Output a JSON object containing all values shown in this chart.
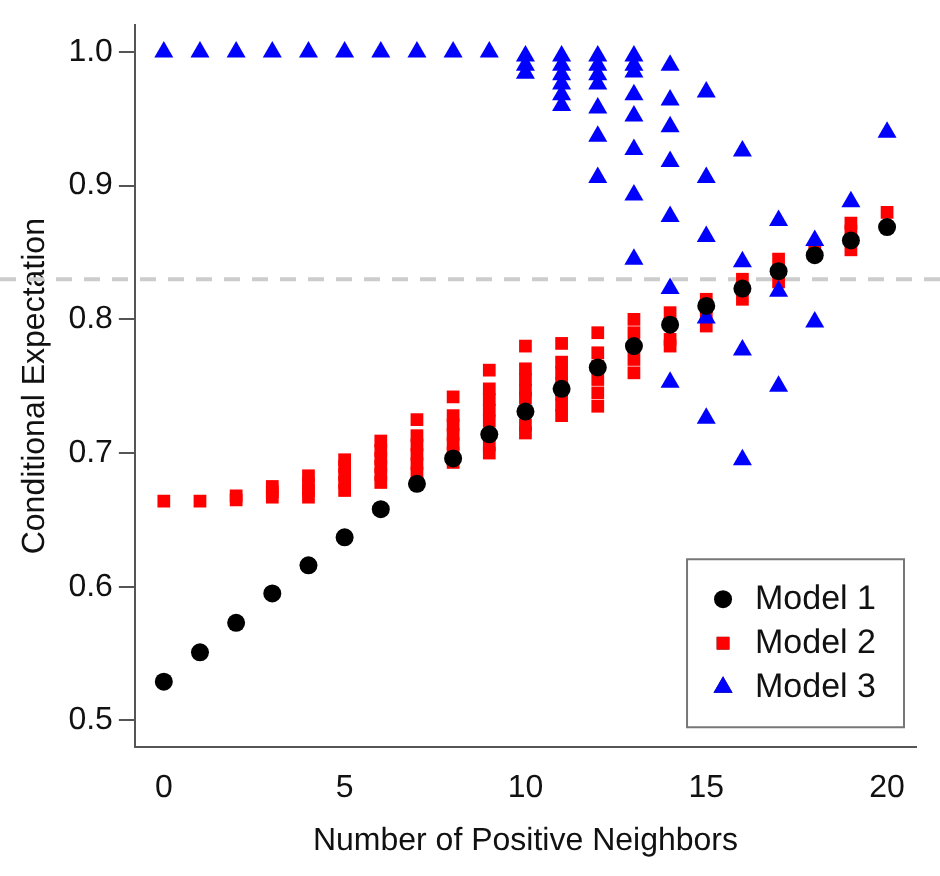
{
  "chart_data": {
    "type": "scatter",
    "xlabel": "Number of Positive Neighbors",
    "ylabel": "Conditional Expectation",
    "xlim": [
      -0.8,
      20.8
    ],
    "xticks": [
      0,
      5,
      10,
      15,
      20
    ],
    "ylim": [
      0.48,
      1.02
    ],
    "yticks": [
      0.5,
      0.6,
      0.7,
      0.8,
      0.9,
      {
        "value": 1,
        "label": "1.0"
      }
    ],
    "grid": false,
    "legend": "bottom right",
    "ref_lines": [
      {
        "axis": "y",
        "value": 0.83,
        "color": "#cccccc",
        "line_style": "dashed"
      }
    ],
    "series": [
      {
        "name": "Model 1",
        "color": "#000000",
        "marker": "circle",
        "x": [
          0,
          1,
          2,
          3,
          4,
          5,
          6,
          7,
          8,
          9,
          10,
          11,
          12,
          13,
          14,
          15,
          16,
          17,
          18,
          19,
          20
        ],
        "values": [
          0.529,
          0.551,
          0.573,
          0.595,
          0.616,
          0.637,
          0.658,
          0.677,
          0.696,
          0.714,
          0.731,
          0.748,
          0.764,
          0.78,
          0.796,
          0.81,
          0.823,
          0.836,
          0.848,
          0.859,
          0.869
        ]
      },
      {
        "name": "Model 2",
        "color": "#ff0000",
        "marker": "square",
        "x": [
          0,
          1,
          2,
          2,
          3,
          3,
          3,
          4,
          4,
          4,
          4,
          5,
          5,
          5,
          5,
          5,
          6,
          6,
          6,
          6,
          6,
          6,
          7,
          7,
          7,
          7,
          7,
          7,
          8,
          8,
          8,
          8,
          8,
          8,
          8,
          9,
          9,
          9,
          9,
          9,
          9,
          9,
          10,
          10,
          10,
          10,
          10,
          10,
          10,
          11,
          11,
          11,
          11,
          11,
          11,
          11,
          12,
          12,
          12,
          12,
          12,
          12,
          13,
          13,
          13,
          13,
          14,
          14,
          14,
          15,
          15,
          15,
          16,
          16,
          17,
          17,
          18,
          19,
          19,
          19,
          20
        ],
        "values": [
          0.664,
          0.664,
          0.665,
          0.668,
          0.667,
          0.671,
          0.675,
          0.667,
          0.672,
          0.677,
          0.683,
          0.672,
          0.678,
          0.684,
          0.69,
          0.695,
          0.678,
          0.684,
          0.69,
          0.696,
          0.702,
          0.709,
          0.685,
          0.692,
          0.699,
          0.706,
          0.713,
          0.725,
          0.693,
          0.7,
          0.707,
          0.714,
          0.721,
          0.728,
          0.742,
          0.7,
          0.706,
          0.724,
          0.732,
          0.74,
          0.748,
          0.762,
          0.715,
          0.721,
          0.741,
          0.747,
          0.755,
          0.763,
          0.78,
          0.728,
          0.736,
          0.744,
          0.752,
          0.76,
          0.768,
          0.782,
          0.735,
          0.745,
          0.755,
          0.765,
          0.775,
          0.79,
          0.76,
          0.77,
          0.79,
          0.8,
          0.78,
          0.785,
          0.805,
          0.795,
          0.805,
          0.815,
          0.815,
          0.83,
          0.828,
          0.845,
          0.853,
          0.852,
          0.866,
          0.872,
          0.88
        ]
      },
      {
        "name": "Model 3",
        "color": "#0000ff",
        "marker": "triangle",
        "x": [
          0,
          1,
          2,
          3,
          4,
          5,
          6,
          7,
          8,
          9,
          10,
          10,
          10,
          11,
          11,
          11,
          11,
          11,
          11,
          12,
          12,
          12,
          12,
          12,
          12,
          12,
          13,
          13,
          13,
          13,
          13,
          13,
          13,
          13,
          14,
          14,
          14,
          14,
          14,
          14,
          14,
          15,
          15,
          15,
          15,
          15,
          16,
          16,
          16,
          16,
          17,
          17,
          17,
          18,
          18,
          19,
          20
        ],
        "values": [
          1.0,
          1.0,
          1.0,
          1.0,
          1.0,
          1.0,
          1.0,
          1.0,
          1.0,
          1.0,
          0.997,
          0.99,
          0.984,
          0.997,
          0.99,
          0.983,
          0.976,
          0.968,
          0.96,
          0.997,
          0.99,
          0.983,
          0.976,
          0.958,
          0.937,
          0.906,
          0.997,
          0.99,
          0.985,
          0.968,
          0.952,
          0.927,
          0.893,
          0.845,
          0.99,
          0.964,
          0.944,
          0.918,
          0.877,
          0.823,
          0.753,
          0.97,
          0.906,
          0.862,
          0.801,
          0.726,
          0.926,
          0.843,
          0.777,
          0.695,
          0.874,
          0.821,
          0.75,
          0.859,
          0.798,
          0.888,
          0.94
        ]
      }
    ]
  }
}
